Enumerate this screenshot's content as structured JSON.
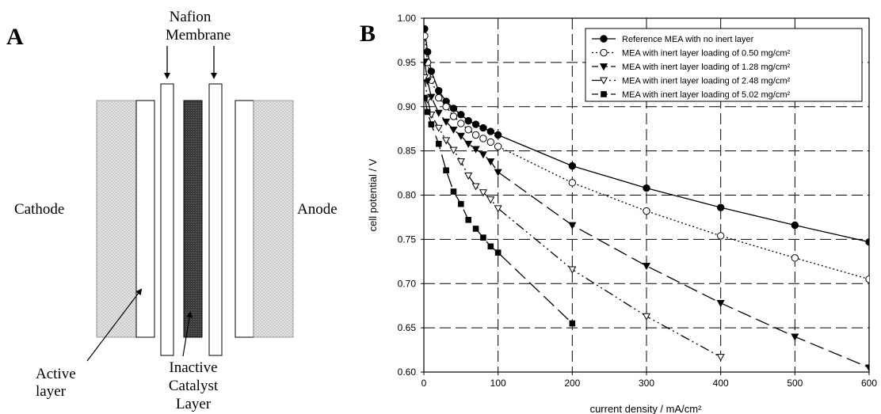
{
  "panel_a": {
    "label": "A",
    "membrane_label": [
      "Nafion",
      "Membrane"
    ],
    "cathode_label": "Cathode",
    "anode_label": "Anode",
    "active_layer_label": [
      "Active",
      "layer"
    ],
    "inactive_layer_label": [
      "Inactive",
      "Catalyst",
      "Layer"
    ]
  },
  "panel_b": {
    "label": "B"
  },
  "chart_data": {
    "type": "line",
    "xlabel": "current density / mA/cm²",
    "ylabel": "cell potential / V",
    "xlim": [
      0,
      600
    ],
    "ylim": [
      0.6,
      1.0
    ],
    "xticks": [
      0,
      100,
      200,
      300,
      400,
      500,
      600
    ],
    "yticks": [
      0.6,
      0.65,
      0.7,
      0.75,
      0.8,
      0.85,
      0.9,
      0.95,
      1.0
    ],
    "grid": true,
    "legend_position": "top-right",
    "series": [
      {
        "name": "Reference MEA with no inert layer",
        "marker": "filled-circle",
        "line": "solid",
        "x": [
          1,
          5,
          10,
          20,
          30,
          40,
          50,
          60,
          70,
          80,
          90,
          100,
          200,
          300,
          400,
          500,
          600
        ],
        "y": [
          0.988,
          0.962,
          0.94,
          0.918,
          0.906,
          0.898,
          0.891,
          0.884,
          0.88,
          0.876,
          0.872,
          0.868,
          0.833,
          0.808,
          0.786,
          0.766,
          0.747
        ]
      },
      {
        "name": "MEA with inert layer loading of 0.50 mg/cm²",
        "marker": "open-circle",
        "line": "dotted",
        "x": [
          1,
          5,
          10,
          20,
          30,
          40,
          50,
          60,
          70,
          80,
          90,
          100,
          200,
          300,
          400,
          500,
          600
        ],
        "y": [
          0.98,
          0.95,
          0.93,
          0.91,
          0.9,
          0.889,
          0.881,
          0.874,
          0.868,
          0.864,
          0.86,
          0.855,
          0.814,
          0.782,
          0.754,
          0.729,
          0.705
        ]
      },
      {
        "name": "MEA with inert layer loading of 1.28 mg/cm²",
        "marker": "filled-triangle-down",
        "line": "long-dash",
        "x": [
          1,
          5,
          10,
          20,
          30,
          40,
          50,
          60,
          70,
          80,
          90,
          100,
          200,
          300,
          400,
          500,
          600
        ],
        "y": [
          0.951,
          0.929,
          0.911,
          0.893,
          0.883,
          0.874,
          0.867,
          0.858,
          0.852,
          0.846,
          0.838,
          0.826,
          0.766,
          0.72,
          0.678,
          0.64,
          0.605
        ]
      },
      {
        "name": "MEA with inert layer loading of 2.48 mg/cm²",
        "marker": "open-triangle-down",
        "line": "dash-dot-dot",
        "x": [
          1,
          5,
          10,
          20,
          30,
          40,
          50,
          60,
          70,
          80,
          90,
          100,
          200,
          300,
          400
        ],
        "y": [
          0.933,
          0.908,
          0.891,
          0.876,
          0.862,
          0.851,
          0.838,
          0.822,
          0.81,
          0.803,
          0.795,
          0.785,
          0.716,
          0.663,
          0.617
        ]
      },
      {
        "name": "MEA with inert layer loading of 5.02 mg/cm²",
        "marker": "filled-square",
        "line": "long-dash",
        "x": [
          1,
          5,
          10,
          20,
          30,
          40,
          50,
          60,
          70,
          80,
          90,
          100,
          200
        ],
        "y": [
          0.91,
          0.894,
          0.88,
          0.858,
          0.828,
          0.804,
          0.79,
          0.772,
          0.762,
          0.752,
          0.742,
          0.735,
          0.655
        ]
      }
    ]
  }
}
